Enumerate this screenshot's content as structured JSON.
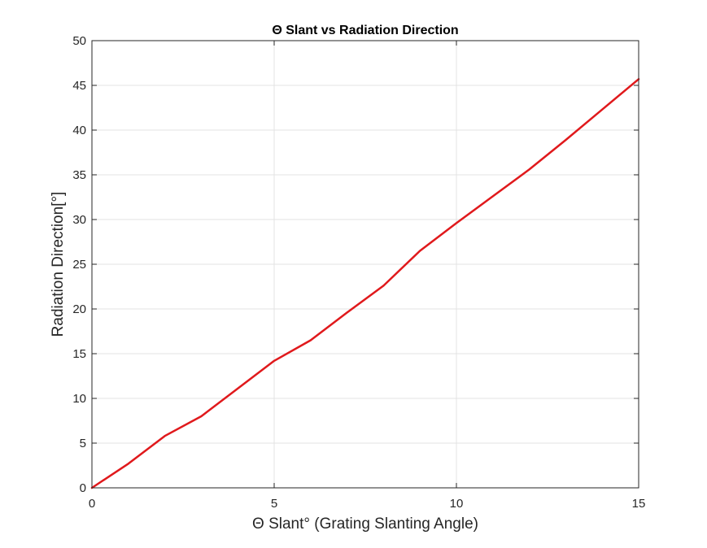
{
  "chart_data": {
    "type": "line",
    "title": "Θ Slant vs Radiation Direction",
    "xlabel": "Θ Slant° (Grating Slanting Angle)",
    "ylabel": "Radiation Direction[°]",
    "xlim": [
      0,
      15
    ],
    "ylim": [
      0,
      50
    ],
    "xticks": [
      0,
      5,
      10,
      15
    ],
    "yticks": [
      0,
      5,
      10,
      15,
      20,
      25,
      30,
      35,
      40,
      45,
      50
    ],
    "grid": true,
    "series": [
      {
        "color": "#e0191c",
        "x": [
          0,
          1,
          2,
          3,
          4,
          5,
          6,
          7,
          8,
          9,
          10,
          11,
          12,
          13,
          14,
          15
        ],
        "y": [
          0,
          2.7,
          5.8,
          8.0,
          11.1,
          14.2,
          16.5,
          19.6,
          22.6,
          26.5,
          29.6,
          32.6,
          35.6,
          38.9,
          42.3,
          45.7
        ]
      }
    ]
  }
}
